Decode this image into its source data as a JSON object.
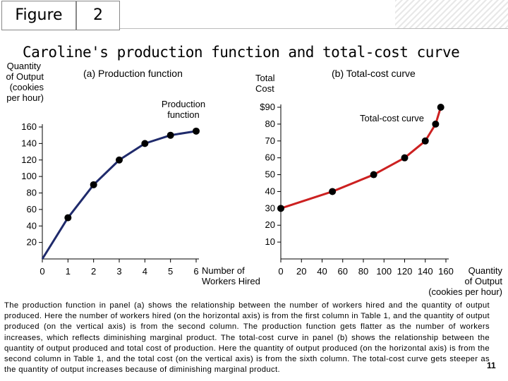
{
  "header": {
    "figure_label": "Figure",
    "figure_number": "2"
  },
  "title": "Caroline's production function and total-cost curve",
  "panel_a": {
    "title": "(a) Production function",
    "y_axis_label": [
      "Quantity",
      "of Output",
      "(cookies",
      "per hour)"
    ],
    "x_axis_label": [
      "Number of",
      "Workers Hired"
    ],
    "curve_label": [
      "Production",
      "function"
    ]
  },
  "panel_b": {
    "title": "(b) Total-cost curve",
    "y_axis_label": [
      "Total",
      "Cost"
    ],
    "x_axis_label": [
      "Quantity",
      "of Output",
      "(cookies per hour)"
    ],
    "curve_label": "Total-cost curve"
  },
  "caption": "The production function in panel (a) shows the relationship between the number of workers hired and the quantity of output produced. Here the number of workers hired (on the horizontal axis) is from the first column in Table 1, and the quantity of output produced (on the vertical axis) is from the second column. The production function gets flatter as the number of workers increases, which reflects diminishing marginal product. The total-cost curve in panel (b) shows the relationship between the quantity of output produced and total cost of production. Here the quantity of output produced (on the horizontal axis) is from the second column in Table 1, and the total cost (on the vertical axis) is from the sixth column. The total-cost curve gets steeper as the quantity of output increases because of diminishing marginal product.",
  "page_number": "11",
  "colors": {
    "production": "#1f2a6b",
    "cost": "#cc2020",
    "marker": "#000000"
  },
  "chart_data": [
    {
      "type": "line",
      "title": "(a) Production function",
      "xlabel": "Number of Workers Hired",
      "ylabel": "Quantity of Output (cookies per hour)",
      "x": [
        0,
        1,
        2,
        3,
        4,
        5,
        6
      ],
      "y": [
        0,
        50,
        90,
        120,
        140,
        150,
        155
      ],
      "x_ticks": [
        0,
        1,
        2,
        3,
        4,
        5,
        6
      ],
      "x_tick_labels": [
        "0",
        "1",
        "2",
        "3",
        "4",
        "5",
        "6"
      ],
      "y_ticks": [
        20,
        40,
        60,
        80,
        100,
        120,
        140,
        160
      ],
      "y_tick_labels": [
        "20",
        "40",
        "60",
        "80",
        "100",
        "120",
        "140",
        "160"
      ],
      "xlim": [
        0,
        6
      ],
      "ylim": [
        0,
        160
      ]
    },
    {
      "type": "line",
      "title": "(b) Total-cost curve",
      "xlabel": "Quantity of Output (cookies per hour)",
      "ylabel": "Total Cost",
      "x": [
        0,
        50,
        90,
        120,
        140,
        150,
        155
      ],
      "y": [
        30,
        40,
        50,
        60,
        70,
        80,
        90
      ],
      "x_ticks": [
        0,
        20,
        40,
        60,
        80,
        100,
        120,
        140,
        160
      ],
      "x_tick_labels": [
        "0",
        "20",
        "40",
        "60",
        "80",
        "100",
        "120",
        "140",
        "160"
      ],
      "y_ticks": [
        10,
        20,
        30,
        40,
        50,
        60,
        70,
        80,
        90
      ],
      "y_tick_labels": [
        "10",
        "20",
        "30",
        "40",
        "50",
        "60",
        "70",
        "80",
        "$90"
      ],
      "xlim": [
        0,
        160
      ],
      "ylim": [
        0,
        90
      ]
    }
  ]
}
